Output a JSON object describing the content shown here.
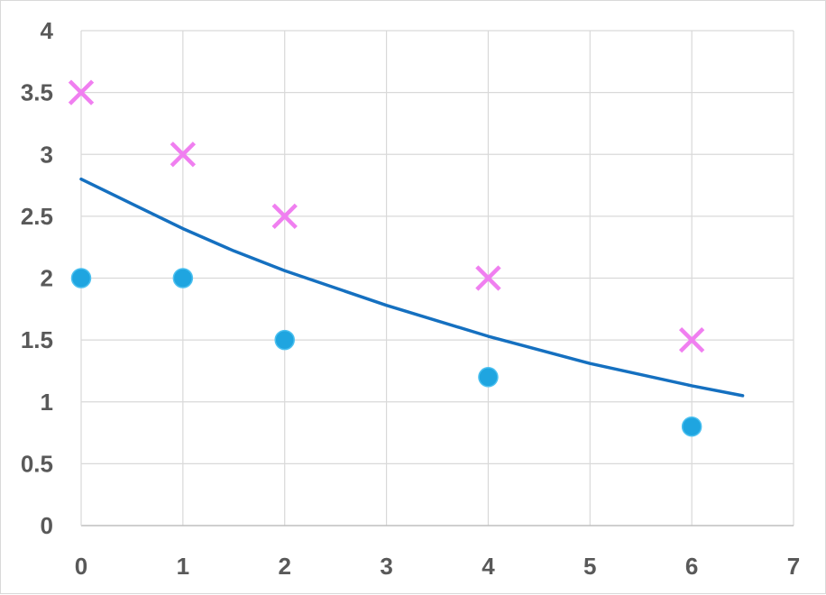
{
  "chart_data": {
    "type": "scatter",
    "title": "",
    "xlabel": "",
    "ylabel": "",
    "xlim": [
      0,
      7
    ],
    "ylim": [
      0,
      4
    ],
    "x_ticks": [
      "0",
      "1",
      "2",
      "3",
      "4",
      "5",
      "6",
      "7"
    ],
    "y_ticks": [
      "0",
      "0.5",
      "1",
      "1.5",
      "2",
      "2.5",
      "3",
      "3.5",
      "4"
    ],
    "grid": true,
    "legend": "none",
    "series": [
      {
        "marker": "cross",
        "color": "#f07ff0",
        "points": [
          [
            0,
            3.5
          ],
          [
            1,
            3.0
          ],
          [
            2,
            2.5
          ],
          [
            4,
            2.0
          ],
          [
            6,
            1.5
          ]
        ]
      },
      {
        "marker": "circle",
        "color": "#1fa5e0",
        "points": [
          [
            0,
            2.0
          ],
          [
            1,
            2.0
          ],
          [
            2,
            1.5
          ],
          [
            4,
            1.2
          ],
          [
            6,
            0.8
          ]
        ]
      },
      {
        "marker": "line",
        "color": "#1570c0",
        "points": [
          [
            0,
            2.8
          ],
          [
            0.5,
            2.6
          ],
          [
            1,
            2.4
          ],
          [
            1.5,
            2.22
          ],
          [
            2,
            2.06
          ],
          [
            3,
            1.78
          ],
          [
            4,
            1.53
          ],
          [
            5,
            1.31
          ],
          [
            6,
            1.13
          ],
          [
            6.5,
            1.05
          ]
        ]
      }
    ]
  }
}
